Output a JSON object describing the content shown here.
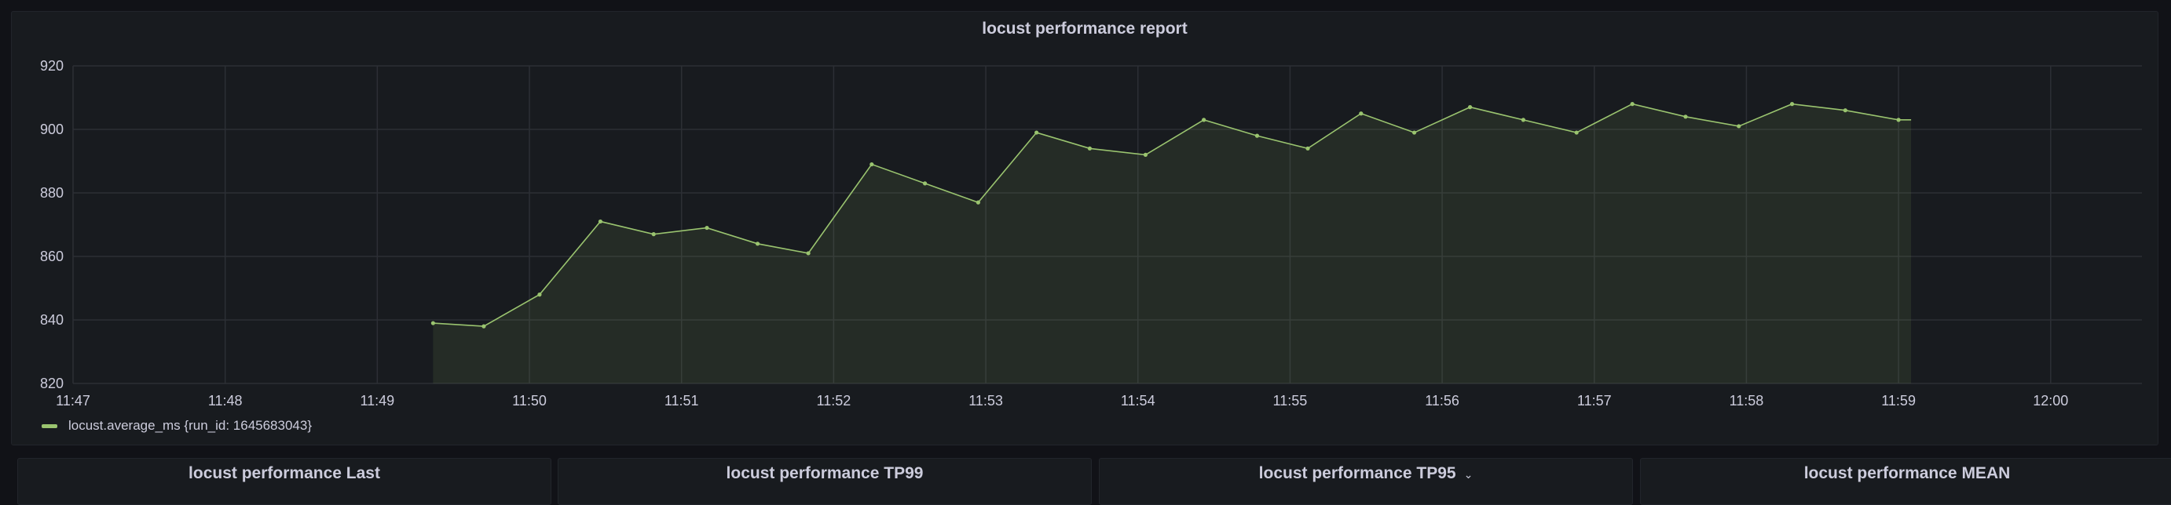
{
  "dashboard": {
    "main_panel": {
      "title": "locust performance report"
    },
    "bottom_panels": [
      {
        "title": "locust performance Last",
        "menu": false
      },
      {
        "title": "locust performance TP99",
        "menu": false
      },
      {
        "title": "locust performance TP95",
        "menu": true
      },
      {
        "title": "locust performance MEAN",
        "menu": false
      }
    ]
  },
  "chart_data": {
    "type": "area",
    "title": "locust performance report",
    "xlabel": "",
    "ylabel": "",
    "xlim": [
      "11:47",
      "12:00"
    ],
    "ylim": [
      820,
      920
    ],
    "y_ticks": [
      "920",
      "900",
      "880",
      "860",
      "840",
      "820"
    ],
    "x_ticks": [
      "11:47",
      "11:48",
      "11:49",
      "11:50",
      "11:51",
      "11:52",
      "11:53",
      "11:54",
      "11:55",
      "11:56",
      "11:57",
      "11:58",
      "11:59",
      "12:00"
    ],
    "grid": true,
    "legend_position": "bottom-left",
    "series": [
      {
        "name": "locust.average_ms {run_id: 1645683043}",
        "color": "#9ac46f",
        "x": [
          "11:49:22",
          "11:49:42",
          "11:50:04",
          "11:50:28",
          "11:50:49",
          "11:51:10",
          "11:51:30",
          "11:51:50",
          "11:52:15",
          "11:52:36",
          "11:52:57",
          "11:53:20",
          "11:53:41",
          "11:54:03",
          "11:54:26",
          "11:54:47",
          "11:55:07",
          "11:55:28",
          "11:55:49",
          "11:56:11",
          "11:56:32",
          "11:56:53",
          "11:57:15",
          "11:57:36",
          "11:57:57",
          "11:58:18",
          "11:58:39",
          "11:59:00"
        ],
        "values": [
          839,
          838,
          848,
          871,
          867,
          869,
          864,
          861,
          889,
          883,
          877,
          899,
          894,
          892,
          903,
          898,
          894,
          905,
          899,
          907,
          903,
          899,
          908,
          904,
          901,
          908,
          906,
          903
        ]
      }
    ]
  }
}
